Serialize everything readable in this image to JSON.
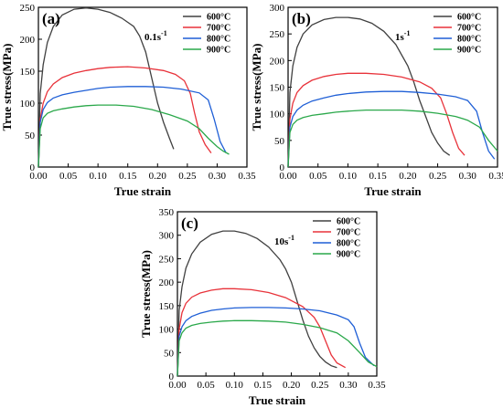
{
  "chart_data": [
    {
      "type": "line",
      "panel_label": "(a)",
      "rate_label": "0.1s",
      "rate_exponent": "-1",
      "xlabel": "True strain",
      "ylabel": "True stress(MPa)",
      "xlim": [
        0,
        0.35
      ],
      "ylim": [
        0,
        250
      ],
      "xticks": [
        "0.00",
        "0.05",
        "0.10",
        "0.15",
        "0.20",
        "0.25",
        "0.30",
        "0.35"
      ],
      "yticks": [
        "0",
        "50",
        "100",
        "150",
        "200",
        "250"
      ],
      "legend_position": "top-right",
      "series": [
        {
          "name": "600°C",
          "color": "#404040",
          "x": [
            0,
            0.003,
            0.008,
            0.015,
            0.025,
            0.04,
            0.06,
            0.08,
            0.1,
            0.12,
            0.14,
            0.16,
            0.17,
            0.18,
            0.19,
            0.2,
            0.21,
            0.22,
            0.227
          ],
          "y": [
            0,
            115,
            160,
            195,
            220,
            238,
            247,
            249,
            247,
            242,
            233,
            220,
            205,
            180,
            140,
            100,
            70,
            45,
            28
          ]
        },
        {
          "name": "700°C",
          "color": "#e8323a",
          "x": [
            0,
            0.003,
            0.008,
            0.015,
            0.025,
            0.04,
            0.06,
            0.08,
            0.1,
            0.12,
            0.15,
            0.18,
            0.21,
            0.23,
            0.245,
            0.255,
            0.262,
            0.27,
            0.28,
            0.29
          ],
          "y": [
            0,
            75,
            100,
            118,
            130,
            140,
            147,
            151,
            154,
            156,
            157,
            155,
            151,
            145,
            135,
            115,
            85,
            55,
            35,
            22
          ]
        },
        {
          "name": "800°C",
          "color": "#1f5fd6",
          "x": [
            0,
            0.003,
            0.008,
            0.015,
            0.025,
            0.04,
            0.06,
            0.08,
            0.1,
            0.12,
            0.15,
            0.18,
            0.21,
            0.24,
            0.27,
            0.285,
            0.295,
            0.305,
            0.315
          ],
          "y": [
            0,
            70,
            90,
            101,
            108,
            113,
            117,
            120,
            123,
            125,
            126,
            126,
            125,
            122,
            116,
            105,
            75,
            40,
            22
          ]
        },
        {
          "name": "900°C",
          "color": "#2aa84a",
          "x": [
            0,
            0.003,
            0.008,
            0.015,
            0.025,
            0.04,
            0.06,
            0.08,
            0.1,
            0.13,
            0.16,
            0.19,
            0.22,
            0.25,
            0.27,
            0.285,
            0.3,
            0.31,
            0.32
          ],
          "y": [
            0,
            60,
            77,
            84,
            88,
            91,
            94,
            96,
            97,
            97,
            95,
            90,
            82,
            72,
            60,
            45,
            32,
            25,
            20
          ]
        }
      ]
    },
    {
      "type": "line",
      "panel_label": "(b)",
      "rate_label": "1s",
      "rate_exponent": "-1",
      "xlabel": "True strain",
      "ylabel": "True stress(MPa)",
      "xlim": [
        0,
        0.35
      ],
      "ylim": [
        0,
        300
      ],
      "xticks": [
        "0.00",
        "0.05",
        "0.10",
        "0.15",
        "0.20",
        "0.25",
        "0.30",
        "0.35"
      ],
      "yticks": [
        "0",
        "50",
        "100",
        "150",
        "200",
        "250",
        "300"
      ],
      "legend_position": "top-right",
      "series": [
        {
          "name": "600°C",
          "color": "#404040",
          "x": [
            0,
            0.003,
            0.008,
            0.015,
            0.025,
            0.04,
            0.06,
            0.08,
            0.1,
            0.12,
            0.14,
            0.16,
            0.18,
            0.2,
            0.21,
            0.22,
            0.23,
            0.24,
            0.25,
            0.26,
            0.27
          ],
          "y": [
            0,
            140,
            190,
            225,
            250,
            267,
            277,
            281,
            281,
            278,
            270,
            255,
            230,
            190,
            160,
            125,
            95,
            65,
            45,
            30,
            22
          ]
        },
        {
          "name": "700°C",
          "color": "#e8323a",
          "x": [
            0,
            0.003,
            0.008,
            0.015,
            0.025,
            0.04,
            0.06,
            0.08,
            0.1,
            0.13,
            0.16,
            0.19,
            0.22,
            0.24,
            0.255,
            0.265,
            0.275,
            0.285,
            0.295
          ],
          "y": [
            0,
            90,
            120,
            140,
            153,
            163,
            170,
            174,
            176,
            176,
            174,
            169,
            160,
            148,
            130,
            100,
            65,
            35,
            22
          ]
        },
        {
          "name": "800°C",
          "color": "#1f5fd6",
          "x": [
            0,
            0.003,
            0.008,
            0.015,
            0.025,
            0.04,
            0.06,
            0.08,
            0.1,
            0.13,
            0.16,
            0.19,
            0.22,
            0.25,
            0.28,
            0.3,
            0.315,
            0.325,
            0.335,
            0.345
          ],
          "y": [
            0,
            75,
            95,
            107,
            116,
            124,
            130,
            135,
            138,
            141,
            142,
            142,
            140,
            137,
            132,
            125,
            105,
            65,
            30,
            15
          ]
        },
        {
          "name": "900°C",
          "color": "#2aa84a",
          "x": [
            0,
            0.003,
            0.008,
            0.015,
            0.025,
            0.04,
            0.06,
            0.08,
            0.1,
            0.13,
            0.16,
            0.19,
            0.22,
            0.25,
            0.28,
            0.3,
            0.32,
            0.335,
            0.35
          ],
          "y": [
            0,
            65,
            80,
            88,
            93,
            97,
            100,
            103,
            105,
            107,
            107,
            107,
            105,
            101,
            95,
            88,
            75,
            50,
            30
          ]
        }
      ]
    },
    {
      "type": "line",
      "panel_label": "(c)",
      "rate_label": "10s",
      "rate_exponent": "-1",
      "xlabel": "True strain",
      "ylabel": "True stress(MPa)",
      "xlim": [
        0,
        0.35
      ],
      "ylim": [
        0,
        350
      ],
      "xticks": [
        "0.00",
        "0.05",
        "0.10",
        "0.15",
        "0.20",
        "0.25",
        "0.30",
        "0.35"
      ],
      "yticks": [
        "0",
        "50",
        "100",
        "150",
        "200",
        "250",
        "300",
        "350"
      ],
      "legend_position": "top-right",
      "series": [
        {
          "name": "600°C",
          "color": "#404040",
          "x": [
            0,
            0.003,
            0.008,
            0.015,
            0.025,
            0.04,
            0.06,
            0.08,
            0.1,
            0.12,
            0.14,
            0.16,
            0.18,
            0.19,
            0.2,
            0.21,
            0.22,
            0.23,
            0.24,
            0.25,
            0.26,
            0.27,
            0.28
          ],
          "y": [
            0,
            140,
            190,
            230,
            260,
            285,
            302,
            309,
            309,
            304,
            293,
            275,
            248,
            228,
            200,
            160,
            120,
            85,
            60,
            42,
            30,
            22,
            18
          ]
        },
        {
          "name": "700°C",
          "color": "#e8323a",
          "x": [
            0,
            0.003,
            0.008,
            0.015,
            0.025,
            0.04,
            0.06,
            0.08,
            0.1,
            0.13,
            0.16,
            0.19,
            0.22,
            0.24,
            0.25,
            0.26,
            0.27,
            0.28,
            0.295
          ],
          "y": [
            0,
            100,
            135,
            155,
            168,
            177,
            183,
            186,
            186,
            184,
            178,
            167,
            148,
            125,
            105,
            75,
            45,
            28,
            18
          ]
        },
        {
          "name": "800°C",
          "color": "#1f5fd6",
          "x": [
            0,
            0.003,
            0.008,
            0.015,
            0.025,
            0.04,
            0.06,
            0.08,
            0.1,
            0.13,
            0.16,
            0.19,
            0.22,
            0.25,
            0.28,
            0.3,
            0.31,
            0.32,
            0.33,
            0.345
          ],
          "y": [
            0,
            85,
            105,
            118,
            127,
            134,
            140,
            143,
            145,
            146,
            146,
            145,
            143,
            139,
            130,
            120,
            105,
            70,
            40,
            22
          ]
        },
        {
          "name": "900°C",
          "color": "#2aa84a",
          "x": [
            0,
            0.003,
            0.008,
            0.015,
            0.025,
            0.04,
            0.06,
            0.08,
            0.1,
            0.13,
            0.16,
            0.19,
            0.22,
            0.25,
            0.28,
            0.3,
            0.32,
            0.335,
            0.35
          ],
          "y": [
            0,
            75,
            92,
            102,
            108,
            112,
            115,
            117,
            118,
            118,
            117,
            115,
            110,
            103,
            92,
            75,
            50,
            30,
            20
          ]
        }
      ]
    }
  ]
}
